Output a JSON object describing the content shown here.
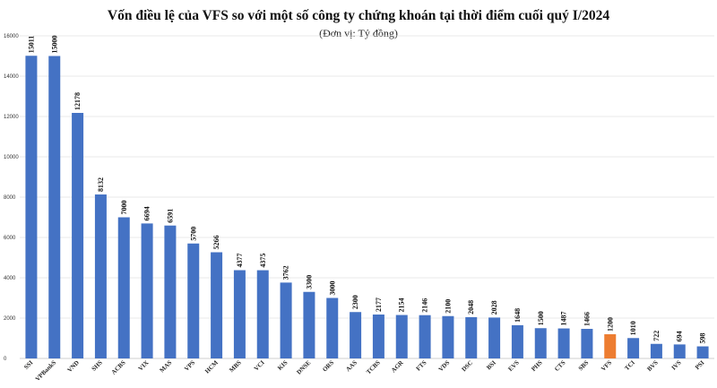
{
  "chart_data": {
    "type": "bar",
    "title": "Vốn điều lệ của VFS so với một số công ty chứng khoán tại thời điểm cuối quý I/2024",
    "subtitle": "(Đơn vị: Tỷ đồng)",
    "xlabel": "",
    "ylabel": "",
    "ylim": [
      0,
      16000
    ],
    "yticks": [
      "0",
      "2000",
      "4000",
      "6000",
      "8000",
      "10000",
      "12000",
      "14000",
      "16000"
    ],
    "grid": true,
    "legend": "none",
    "default_color": "#4472C4",
    "highlight_color": "#ED7D31",
    "highlight_category": "VFS",
    "categories": [
      "SSI",
      "VPBankS",
      "VND",
      "SHS",
      "ACBS",
      "VIX",
      "MAS",
      "VPS",
      "HCM",
      "MBS",
      "VCI",
      "KIS",
      "DNSE",
      "ORS",
      "AAS",
      "TCBS",
      "AGR",
      "FTS",
      "VDS",
      "DSC",
      "BSI",
      "EVS",
      "PHS",
      "CTS",
      "SBS",
      "VFS",
      "TCI",
      "BVS",
      "IVS",
      "PSI"
    ],
    "values": [
      15011,
      15000,
      12178,
      8132,
      7000,
      6694,
      6591,
      5700,
      5266,
      4377,
      4375,
      3762,
      3300,
      3000,
      2300,
      2177,
      2154,
      2146,
      2100,
      2048,
      2028,
      1648,
      1500,
      1487,
      1466,
      1200,
      1010,
      722,
      694,
      598
    ],
    "value_labels": [
      "15011",
      "15000",
      "12178",
      "8132",
      "7000",
      "6694",
      "6591",
      "5700",
      "5266",
      "4377",
      "4375",
      "3762",
      "3300",
      "3000",
      "2300",
      "2177",
      "2154",
      "2146",
      "2100",
      "2048",
      "2028",
      "1648",
      "1500",
      "1487",
      "1466",
      "1200",
      "1010",
      "722",
      "694",
      "598"
    ]
  }
}
